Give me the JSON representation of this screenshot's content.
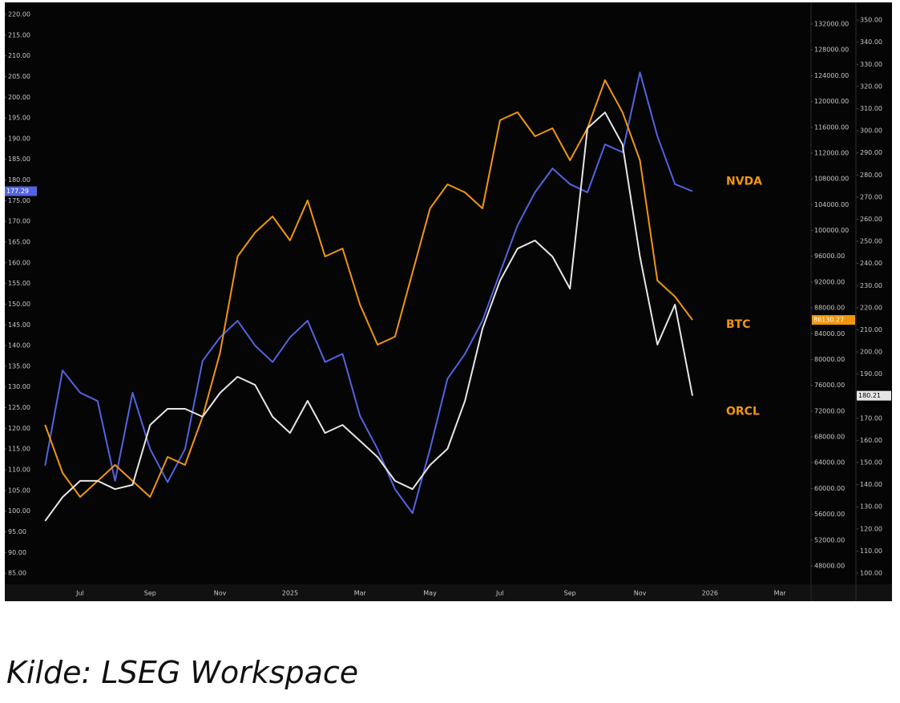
{
  "chart_data": {
    "type": "line",
    "source": "Kilde: LSEG Workspace",
    "categories": [
      null,
      null,
      "Jul",
      null,
      null,
      null,
      "Sep",
      null,
      null,
      null,
      "Nov",
      null,
      null,
      null,
      "2025",
      null,
      null,
      null,
      "Mar",
      null,
      null,
      null,
      "May",
      null,
      null,
      null,
      "Jul",
      null,
      null,
      null,
      "Sep",
      null,
      null,
      null,
      "Nov",
      null,
      null,
      null,
      "2026",
      null,
      null,
      null,
      "Mar"
    ],
    "series": [
      {
        "name": "NVDA",
        "color": "#5363e0",
        "axis": "y",
        "values": [
          111,
          134,
          128.6,
          126.6,
          107.3,
          128.6,
          115,
          107,
          115,
          136.3,
          142,
          146,
          140,
          136,
          142,
          146,
          136,
          138,
          123,
          115,
          105.3,
          99.5,
          115,
          132,
          138,
          146,
          157.6,
          169,
          177,
          182.8,
          179,
          177,
          188.6,
          186.7,
          206,
          190.6,
          179,
          177.29,
          null,
          null,
          null,
          null,
          null
        ]
      },
      {
        "name": "BTC",
        "color": "#f0960e",
        "axis": "y2",
        "values": [
          69870,
          62414,
          58690,
          61170,
          63660,
          61170,
          58690,
          64900,
          63660,
          71110,
          81050,
          95960,
          99690,
          102180,
          98450,
          104660,
          95960,
          97210,
          88510,
          82300,
          83540,
          93480,
          103420,
          107150,
          105900,
          103420,
          117090,
          118330,
          114600,
          115850,
          110880,
          115850,
          123300,
          118330,
          110880,
          92240,
          89750,
          86130.27,
          null,
          null,
          null,
          null,
          null
        ]
      },
      {
        "name": "ORCL",
        "color": "#e6e6e6",
        "axis": "y3",
        "values": [
          123.6,
          134.4,
          141.7,
          141.7,
          138,
          139.9,
          167,
          174.3,
          174.3,
          170.7,
          181.5,
          188.8,
          185.1,
          170.7,
          163.4,
          177.9,
          163.4,
          167,
          159.8,
          152.5,
          141.7,
          138,
          148.9,
          156.2,
          177.9,
          210.5,
          232.2,
          246.7,
          250.4,
          243.1,
          228.6,
          301.1,
          308.3,
          293.8,
          243.1,
          203.3,
          221.4,
          180.21,
          null,
          null,
          null,
          null,
          null
        ]
      }
    ],
    "ylim": [
      82.5,
      222.9
    ],
    "yticks": [
      {
        "value": 85,
        "label": "85.00"
      },
      {
        "value": 90,
        "label": "90.00"
      },
      {
        "value": 95,
        "label": "95.00"
      },
      {
        "value": 100,
        "label": "100.00"
      },
      {
        "value": 105,
        "label": "105.00"
      },
      {
        "value": 110,
        "label": "110.00"
      },
      {
        "value": 115,
        "label": "115.00"
      },
      {
        "value": 120,
        "label": "120.00"
      },
      {
        "value": 125,
        "label": "125.00"
      },
      {
        "value": 130,
        "label": "130.00"
      },
      {
        "value": 135,
        "label": "135.00"
      },
      {
        "value": 140,
        "label": "140.00"
      },
      {
        "value": 145,
        "label": "145.00"
      },
      {
        "value": 150,
        "label": "150.00"
      },
      {
        "value": 155,
        "label": "155.00"
      },
      {
        "value": 160,
        "label": "160.00"
      },
      {
        "value": 165,
        "label": "165.00"
      },
      {
        "value": 170,
        "label": "170.00"
      },
      {
        "value": 175,
        "label": "175.00"
      },
      {
        "value": 180,
        "label": "180.00"
      },
      {
        "value": 185,
        "label": "185.00"
      },
      {
        "value": 190,
        "label": "190.00"
      },
      {
        "value": 195,
        "label": "195.00"
      },
      {
        "value": 200,
        "label": "200.00"
      },
      {
        "value": 205,
        "label": "205.00"
      },
      {
        "value": 210,
        "label": "210.00"
      },
      {
        "value": 215,
        "label": "215.00"
      },
      {
        "value": 220,
        "label": "220.00"
      }
    ],
    "y2lim": [
      45266,
      135355
    ],
    "y2ticks": [
      {
        "value": 48000,
        "label": "48000.00"
      },
      {
        "value": 52000,
        "label": "52000.00"
      },
      {
        "value": 56000,
        "label": "56000.00"
      },
      {
        "value": 60000,
        "label": "60000.00"
      },
      {
        "value": 64000,
        "label": "64000.00"
      },
      {
        "value": 68000,
        "label": "68000.00"
      },
      {
        "value": 72000,
        "label": "72000.00"
      },
      {
        "value": 76000,
        "label": "76000.00"
      },
      {
        "value": 80000,
        "label": "80000.00"
      },
      {
        "value": 84000,
        "label": "84000.00"
      },
      {
        "value": 88000,
        "label": "88000.00"
      },
      {
        "value": 92000,
        "label": "92000.00"
      },
      {
        "value": 96000,
        "label": "96000.00"
      },
      {
        "value": 100000,
        "label": "100000.00"
      },
      {
        "value": 104000,
        "label": "104000.00"
      },
      {
        "value": 108000,
        "label": "108000.00"
      },
      {
        "value": 112000,
        "label": "112000.00"
      },
      {
        "value": 116000,
        "label": "116000.00"
      },
      {
        "value": 120000,
        "label": "120000.00"
      },
      {
        "value": 124000,
        "label": "124000.00"
      },
      {
        "value": 128000,
        "label": "128000.00"
      },
      {
        "value": 132000,
        "label": "132000.00"
      }
    ],
    "y3lim": [
      95.3,
      358
    ],
    "y3ticks": [
      {
        "value": 100,
        "label": "100.00"
      },
      {
        "value": 110,
        "label": "110.00"
      },
      {
        "value": 120,
        "label": "120.00"
      },
      {
        "value": 130,
        "label": "130.00"
      },
      {
        "value": 140,
        "label": "140.00"
      },
      {
        "value": 150,
        "label": "150.00"
      },
      {
        "value": 160,
        "label": "160.00"
      },
      {
        "value": 170,
        "label": "170.00"
      },
      {
        "value": 180,
        "label": "180.00"
      },
      {
        "value": 190,
        "label": "190.00"
      },
      {
        "value": 200,
        "label": "200.00"
      },
      {
        "value": 210,
        "label": "210.00"
      },
      {
        "value": 220,
        "label": "220.00"
      },
      {
        "value": 230,
        "label": "230.00"
      },
      {
        "value": 240,
        "label": "240.00"
      },
      {
        "value": 250,
        "label": "250.00"
      },
      {
        "value": 260,
        "label": "260.00"
      },
      {
        "value": 270,
        "label": "270.00"
      },
      {
        "value": 280,
        "label": "280.00"
      },
      {
        "value": 290,
        "label": "290.00"
      },
      {
        "value": 300,
        "label": "300.00"
      },
      {
        "value": 310,
        "label": "310.00"
      },
      {
        "value": 320,
        "label": "320.00"
      },
      {
        "value": 330,
        "label": "330.00"
      },
      {
        "value": 340,
        "label": "340.00"
      },
      {
        "value": 350,
        "label": "350.00"
      }
    ],
    "grid": false
  }
}
